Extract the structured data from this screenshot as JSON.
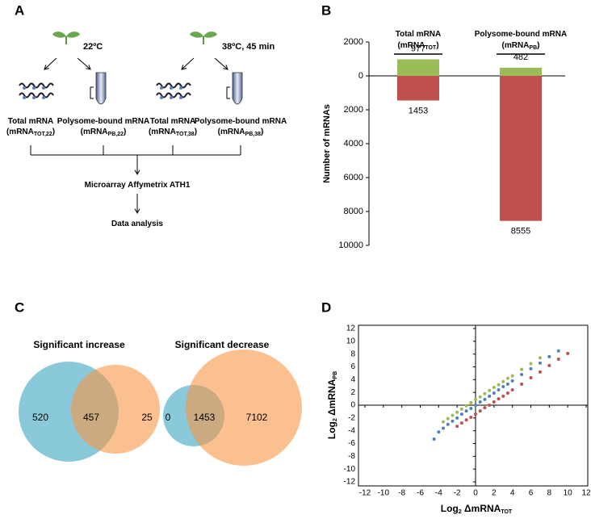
{
  "panel_labels": [
    "A",
    "B",
    "C",
    "D"
  ],
  "diagram": {
    "conditions": [
      "22ºC",
      "38ºC, 45 min"
    ],
    "samples": [
      {
        "name": "Total mRNA",
        "abbr": "(mRNA",
        "sub": "TOT,22",
        "close": ")"
      },
      {
        "name": "Polysome-bound mRNA",
        "abbr": "(mRNA",
        "sub": "PB,22",
        "close": ")"
      },
      {
        "name": "Total mRNA",
        "abbr": "(mRNA",
        "sub": "TOT,38",
        "close": ")"
      },
      {
        "name": "Polysome-bound mRNA",
        "abbr": "(mRNA",
        "sub": "PB,38",
        "close": ")"
      }
    ],
    "steps": [
      "Microarray Affymetrix ATH1",
      "Data analysis"
    ]
  },
  "chart_data": [
    {
      "type": "bar",
      "ylabel": "Number of mRNAs",
      "categories": [
        {
          "name": "Total mRNA",
          "abbr": "(mRNA",
          "sub": "TOT",
          "close": ")"
        },
        {
          "name": "Polysome-bound mRNA",
          "abbr": "(mRNA",
          "sub": "PB",
          "close": ")"
        }
      ],
      "series": [
        {
          "color": "#9bbb59",
          "values": [
            977,
            482
          ]
        },
        {
          "color": "#c0504d",
          "values": [
            -1453,
            -8555
          ],
          "value_labels": [
            "1453",
            "8555"
          ]
        }
      ],
      "ylim": [
        -10000,
        2000
      ],
      "yticks": [
        2000,
        0,
        {
          "value": -2000,
          "label": "2000"
        },
        {
          "value": -4000,
          "label": "4000"
        },
        {
          "value": -6000,
          "label": "6000"
        },
        {
          "value": -8000,
          "label": "8000"
        },
        {
          "value": -10000,
          "label": "10000"
        }
      ]
    },
    {
      "type": "venn",
      "sets": [
        {
          "title": "Significant increase",
          "values": [
            520,
            457,
            25
          ]
        },
        {
          "title": "Significant decrease",
          "values": [
            0,
            1453,
            7102
          ]
        }
      ]
    },
    {
      "type": "scatter",
      "xlabel": {
        "main": "Log",
        "sub": "2",
        "rest": " ΔmRNA",
        "sub2": "TOT"
      },
      "ylabel": {
        "main": "Log",
        "sub": "2",
        "rest": " ΔmRNA",
        "sub2": "PB"
      },
      "xlim": [
        -12,
        12
      ],
      "ylim": [
        -12,
        12
      ],
      "xticks": [
        -12,
        -10,
        -8,
        -6,
        -4,
        -2,
        0,
        2,
        4,
        6,
        8,
        10,
        12
      ],
      "yticks": [
        -12,
        -10,
        -8,
        -6,
        -4,
        -2,
        0,
        2,
        4,
        6,
        8,
        10,
        12
      ],
      "series": [
        {
          "color": "#9bbb59",
          "x": [
            -3.5,
            -3,
            -2.5,
            -2,
            -1.5,
            -1,
            -0.5,
            0,
            0.5,
            1,
            1.5,
            2,
            2.5,
            3,
            3.5,
            4,
            5,
            6,
            7
          ],
          "y": [
            -2.6,
            -2.1,
            -1.6,
            -1.1,
            -0.6,
            -0.1,
            0.4,
            0.9,
            1.3,
            1.8,
            2.3,
            2.8,
            3.2,
            3.7,
            4.2,
            4.6,
            5.6,
            6.5,
            7.4
          ]
        },
        {
          "color": "#c0504d",
          "x": [
            -2,
            -1.5,
            -1,
            -0.5,
            0,
            0.5,
            1,
            1.5,
            2,
            2.5,
            3,
            3.5,
            4,
            5,
            6,
            7,
            8,
            9,
            10
          ],
          "y": [
            -3.3,
            -2.8,
            -2.3,
            -1.9,
            -1.4,
            -0.9,
            -0.4,
            0,
            0.5,
            1,
            1.4,
            1.9,
            2.4,
            3.3,
            4.3,
            5.2,
            6.2,
            7.2,
            8.1
          ]
        },
        {
          "color": "#4f81bd",
          "x": [
            -4.5,
            -4,
            -3.5,
            -3,
            -2.5,
            -2,
            -1.5,
            -1,
            -0.5,
            0,
            0.5,
            1,
            1.5,
            2,
            2.5,
            3,
            3.5,
            4,
            5,
            6,
            7,
            8,
            9
          ],
          "y": [
            -5.3,
            -4.2,
            -3.6,
            -3,
            -2.5,
            -2,
            -1.4,
            -0.9,
            -0.5,
            0,
            0.5,
            0.9,
            1.4,
            1.9,
            2.4,
            2.9,
            3.3,
            3.8,
            4.8,
            5.7,
            6.6,
            7.6,
            8.5
          ]
        }
      ]
    }
  ]
}
